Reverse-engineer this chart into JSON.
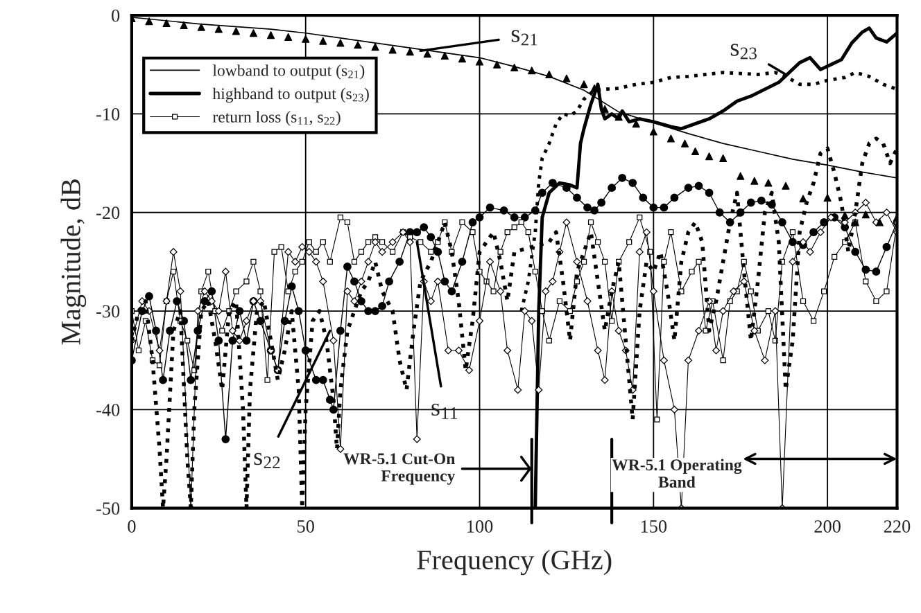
{
  "chart_data": {
    "type": "line",
    "xlabel": "Frequency (GHz)",
    "ylabel": "Magnitude, dB",
    "xlim": [
      0,
      220
    ],
    "ylim": [
      -50,
      0
    ],
    "xticks": [
      0,
      50,
      100,
      150,
      200,
      220
    ],
    "yticks": [
      0,
      -10,
      -20,
      -30,
      -40,
      -50
    ],
    "grid": true,
    "legend": "top left",
    "series": [
      {
        "name": "lowband to output (s$_{21}$)",
        "color": "#000000",
        "line_style": "solid",
        "marker": "none",
        "x": [
          0,
          20,
          40,
          50,
          60,
          80,
          100,
          110,
          120,
          130,
          140,
          150,
          160,
          170,
          180,
          190,
          200,
          210,
          220
        ],
        "values": [
          -0.2,
          -0.9,
          -1.4,
          -1.8,
          -2.3,
          -3.3,
          -4.3,
          -5.2,
          -6.2,
          -7.6,
          -9.8,
          -10.9,
          -12,
          -13,
          -13.8,
          -14.6,
          -15.2,
          -15.9,
          -16.5
        ]
      },
      {
        "type": "scatter",
        "color": "#000000",
        "marker": "triangle",
        "x": [
          0,
          5,
          10,
          15,
          20,
          25,
          30,
          35,
          40,
          45,
          50,
          55,
          60,
          65,
          70,
          75,
          80,
          85,
          90,
          95,
          100,
          105,
          110,
          115,
          120,
          125,
          130,
          133,
          136,
          140,
          145,
          150,
          155,
          159,
          162,
          166,
          170,
          175,
          179,
          183,
          188,
          193,
          200,
          205,
          208,
          211,
          215,
          220
        ],
        "values": [
          -0.3,
          -0.6,
          -0.8,
          -1.0,
          -1.2,
          -1.4,
          -1.6,
          -1.8,
          -2.0,
          -2.2,
          -2.4,
          -2.6,
          -2.8,
          -3.0,
          -3.2,
          -3.5,
          -3.7,
          -3.9,
          -4.1,
          -4.4,
          -4.7,
          -5.0,
          -5.3,
          -5.6,
          -6.0,
          -6.4,
          -7.0,
          -7.4,
          -9.5,
          -10.3,
          -11.0,
          -11.8,
          -12.5,
          -13.0,
          -13.8,
          -14.3,
          -14.5,
          -16.3,
          -16.8,
          -17.0,
          -17.3,
          -18.6,
          -18.5,
          -20.3,
          -21.0,
          -20.2,
          -21.0,
          -20.5
        ]
      },
      {
        "name": "highband to output (s$_{23}$)",
        "color": "#000000",
        "line_style": "solid",
        "marker": "none",
        "x": [
          116,
          117,
          118,
          120,
          123,
          126,
          128,
          129,
          130,
          132,
          134,
          135,
          136,
          138,
          140,
          141,
          143,
          146,
          150,
          155,
          158,
          162,
          166,
          170,
          174,
          178,
          182,
          186,
          189,
          192,
          195,
          198,
          201,
          204,
          207,
          210,
          212,
          214,
          217,
          220
        ],
        "values": [
          -50,
          -30,
          -20.5,
          -18,
          -17,
          -17.2,
          -17.5,
          -13,
          -11.5,
          -9,
          -7,
          -9.5,
          -10.5,
          -10,
          -10.5,
          -9.7,
          -10.8,
          -10.5,
          -10.8,
          -11.3,
          -11.5,
          -11,
          -10.5,
          -9.7,
          -8.7,
          -8.2,
          -7.5,
          -6.8,
          -5.8,
          -4.8,
          -4.3,
          -5.5,
          -5,
          -4.5,
          -2.8,
          -1.7,
          -1.3,
          -2.3,
          -2.7,
          -1.8
        ]
      },
      {
        "color": "#000000",
        "line_style": "dotted",
        "marker": "none",
        "x": [
          112,
          114,
          116,
          117,
          118,
          120,
          122,
          124,
          126,
          128,
          130,
          133,
          136,
          140,
          145,
          150,
          155,
          160,
          165,
          170,
          175,
          180,
          185,
          188,
          192,
          196,
          200,
          205,
          208,
          212,
          216,
          220
        ],
        "values": [
          -30,
          -27,
          -22,
          -17,
          -14.5,
          -13,
          -11,
          -10,
          -10.2,
          -9.7,
          -8.5,
          -7.6,
          -7.5,
          -7.4,
          -7,
          -6.8,
          -6.3,
          -6.2,
          -6,
          -5.8,
          -5.9,
          -6,
          -5.8,
          -6.2,
          -7,
          -7,
          -6.6,
          -6.3,
          -5.8,
          -6.2,
          -7,
          -7.5
        ]
      },
      {
        "color": "#000000",
        "line_style": "solid",
        "marker": "circle",
        "x": [
          0,
          3,
          5,
          7,
          9,
          11,
          13,
          15,
          17,
          19,
          21,
          23,
          25,
          27,
          29,
          31,
          33,
          35,
          37,
          40,
          42,
          44,
          46,
          48,
          50,
          53,
          55,
          57,
          58,
          60,
          62,
          64,
          66,
          68,
          70,
          72,
          74,
          77,
          80,
          82,
          84,
          86,
          88,
          90,
          92,
          95,
          98,
          100,
          103,
          107,
          110,
          113,
          116,
          118,
          121,
          125,
          128,
          131,
          133,
          135,
          138,
          141,
          144,
          147,
          150,
          153,
          156,
          160,
          163,
          166,
          169,
          172,
          175,
          178,
          181,
          184,
          187,
          190,
          193,
          196,
          199,
          202,
          205,
          208,
          211,
          214,
          217,
          220
        ],
        "values": [
          -35,
          -30,
          -28.5,
          -32,
          -37,
          -32,
          -29,
          -31,
          -37,
          -32,
          -29,
          -28,
          -33,
          -43,
          -33,
          -30,
          -33,
          -29,
          -31,
          -34,
          -36,
          -31,
          -27.5,
          -30,
          -34,
          -37,
          -37,
          -39,
          -40,
          -32,
          -25.5,
          -27,
          -29,
          -30,
          -30,
          -29.5,
          -27,
          -25,
          -22,
          -22,
          -21.5,
          -22.5,
          -24,
          -27,
          -28,
          -25,
          -21,
          -20.5,
          -19.5,
          -19.8,
          -20.5,
          -20.5,
          -19.8,
          -18,
          -17,
          -17.5,
          -18.5,
          -19.5,
          -19.8,
          -19,
          -17.5,
          -16.5,
          -17,
          -18.5,
          -19.5,
          -19.5,
          -18.5,
          -17.5,
          -17.3,
          -18,
          -20,
          -21,
          -20,
          -19,
          -18.8,
          -19.2,
          -21,
          -23,
          -23.3,
          -22,
          -21,
          -20.5,
          -21.5,
          -24,
          -25.8,
          -26,
          -23.5,
          -21
        ]
      },
      {
        "name": "return loss (s$_{11}$, s$_{22}$)",
        "color": "#000000",
        "line_style": "solid",
        "marker": "square",
        "x": [
          0,
          2,
          4,
          6,
          8,
          10,
          12,
          14,
          16,
          18,
          20,
          22,
          24,
          26,
          28,
          30,
          33,
          35,
          37,
          39,
          41,
          43,
          45,
          47,
          49,
          51,
          53,
          55,
          57,
          60,
          62,
          64,
          66,
          68,
          70,
          72,
          75,
          78,
          80,
          83,
          86,
          88,
          90,
          92,
          95,
          98,
          100,
          102,
          104,
          106,
          108,
          110,
          112,
          114,
          116,
          118,
          120,
          123,
          126,
          128,
          130,
          132,
          134,
          136,
          138,
          140,
          143,
          146,
          149,
          151,
          153,
          155,
          158,
          161,
          163,
          165,
          167,
          170,
          172,
          174,
          176,
          178,
          180,
          183,
          185,
          187,
          190,
          193,
          196,
          199,
          202,
          205,
          208,
          211,
          214,
          217,
          220
        ],
        "values": [
          -30,
          -34,
          -31,
          -35,
          -35.5,
          -29,
          -26,
          -31,
          -33,
          -36,
          -28,
          -26,
          -30,
          -32,
          -30,
          -28,
          -27,
          -25,
          -28,
          -37,
          -24,
          -23.5,
          -28,
          -26,
          -25,
          -23,
          -24,
          -23,
          -25,
          -20.5,
          -21,
          -25,
          -24,
          -23,
          -22.5,
          -23,
          -24,
          -22,
          -22.5,
          -23,
          -24,
          -23,
          -21,
          -24,
          -21,
          -22,
          -26,
          -27,
          -28,
          -24,
          -22,
          -21.5,
          -21,
          -22,
          -26,
          -30,
          -33,
          -29,
          -30,
          -27,
          -25,
          -21,
          -23,
          -25,
          -31,
          -25,
          -23,
          -20.5,
          -24,
          -41,
          -25,
          -22,
          -28,
          -26,
          -25,
          -32,
          -29,
          -35,
          -29,
          -28,
          -25,
          -28,
          -32,
          -30,
          -33,
          -25,
          -22,
          -29,
          -31,
          -28,
          -24.5,
          -23,
          -21,
          -27,
          -29,
          -28,
          -21
        ]
      },
      {
        "color": "#000000",
        "line_style": "solid",
        "marker": "diamond",
        "x": [
          0,
          3,
          5,
          8,
          10,
          12,
          14,
          17,
          19,
          21,
          23,
          25,
          27,
          29,
          31,
          33,
          35,
          37,
          40,
          42,
          45,
          47,
          49,
          51,
          53,
          55,
          58,
          60,
          62,
          64,
          66,
          68,
          70,
          72,
          75,
          78,
          80,
          82,
          84,
          86,
          88,
          91,
          94,
          97,
          100,
          103,
          106,
          108,
          111,
          113,
          115,
          117,
          119,
          121,
          123,
          125,
          128,
          131,
          134,
          136,
          138,
          140,
          142,
          144,
          146,
          148,
          150,
          153,
          156,
          158,
          160,
          163,
          166,
          168,
          170,
          173,
          176,
          179,
          182,
          185,
          187,
          190,
          193,
          195,
          198,
          201,
          205,
          208,
          211,
          214,
          217,
          220
        ],
        "values": [
          -33,
          -29,
          -30,
          -34,
          -29,
          -24,
          -28,
          -50,
          -30,
          -28,
          -29,
          -30,
          -26,
          -32,
          -33,
          -31,
          -29,
          -29,
          -34,
          -36,
          -24,
          -25,
          -23.5,
          -24,
          -25,
          -27,
          -33,
          -44,
          -28,
          -29,
          -27,
          -25,
          -23,
          -24,
          -23,
          -22,
          -23,
          -43,
          -27,
          -29,
          -27,
          -34,
          -34,
          -36,
          -31,
          -25,
          -28,
          -34,
          -38,
          -30,
          -31,
          -38,
          -28,
          -27,
          -24,
          -21,
          -25,
          -29,
          -34,
          -37,
          -28,
          -32,
          -34,
          -38,
          -24,
          -22,
          -28,
          -35,
          -40,
          -50,
          -35,
          -32,
          -29,
          -34,
          -30,
          -28,
          -27,
          -32,
          -35,
          -30,
          -50,
          -25,
          -23,
          -24,
          -22,
          -20.5,
          -21,
          -20,
          -19,
          -21,
          -20,
          -22
        ]
      },
      {
        "color": "#000000",
        "line_style": "dotted",
        "marker": "none",
        "x": [
          0,
          2,
          4,
          6,
          8,
          9,
          10,
          12,
          14,
          16,
          17,
          18,
          20,
          22,
          24,
          26,
          28,
          30,
          32,
          33,
          34,
          36,
          38,
          40,
          42,
          44,
          46,
          48,
          49,
          50,
          52,
          54,
          56,
          58,
          59,
          60,
          62,
          64,
          66,
          68,
          70,
          72,
          75,
          77,
          79,
          81,
          83,
          86,
          88,
          90,
          92,
          94,
          96,
          98,
          100,
          102,
          104,
          106,
          108,
          110,
          120,
          122,
          124,
          126,
          128,
          130,
          132,
          134,
          136,
          138,
          140,
          142,
          144,
          146,
          148,
          150,
          152,
          154,
          156,
          158,
          160,
          162,
          164,
          166,
          168,
          170,
          172,
          174,
          176,
          178,
          180,
          182,
          184,
          186,
          188,
          190,
          192,
          194,
          196,
          198,
          200,
          202,
          204,
          206,
          208,
          210,
          212,
          214,
          216,
          218,
          220
        ],
        "values": [
          -33,
          -30,
          -29,
          -35,
          -44,
          -50,
          -45,
          -32,
          -30,
          -45,
          -50,
          -40,
          -30,
          -29,
          -33,
          -38,
          -30,
          -29,
          -40,
          -50,
          -38,
          -30,
          -29,
          -33,
          -37,
          -34,
          -30,
          -38,
          -50,
          -40,
          -31,
          -30,
          -33,
          -39,
          -44,
          -38,
          -32,
          -30,
          -28,
          -27,
          -25,
          -28,
          -30,
          -35,
          -38,
          -32,
          -27,
          -25,
          -23,
          -21,
          -24,
          -29,
          -36,
          -31,
          -24,
          -23,
          -22,
          -25,
          -29,
          -24,
          -23,
          -22,
          -27,
          -33,
          -26,
          -24,
          -22,
          -27,
          -32,
          -28,
          -25,
          -33,
          -41,
          -30,
          -25,
          -26,
          -24,
          -28,
          -33,
          -25,
          -22,
          -21,
          -23,
          -32,
          -29,
          -25,
          -21,
          -18,
          -26,
          -33,
          -27,
          -20,
          -18,
          -23,
          -38,
          -33,
          -22,
          -19,
          -17,
          -14,
          -13.5,
          -16,
          -19,
          -24,
          -20,
          -15,
          -13,
          -12.5,
          -13,
          -15,
          -13.5
        ]
      }
    ],
    "annotations": [
      {
        "text": "s$_{21}$",
        "x": 83,
        "y": -3.6
      },
      {
        "text": "s$_{23}$",
        "x": 188,
        "y": -6
      },
      {
        "text": "s$_{11}$",
        "x": 82,
        "y": -23
      },
      {
        "text": "s$_{22}$",
        "x": 57,
        "y": -32
      }
    ],
    "ref_lines": [
      {
        "axis": "x",
        "value": 115,
        "label": "WR-5.1 Cut-On\nFrequency"
      },
      {
        "axis": "x",
        "value": 138,
        "label": "WR-5.1 Operating\nBand"
      }
    ]
  }
}
